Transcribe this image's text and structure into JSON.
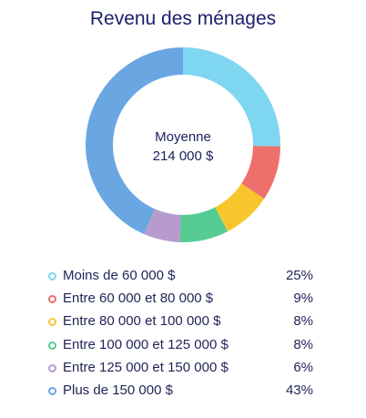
{
  "chart_data": {
    "type": "pie",
    "title": "Revenu des ménages",
    "center_title": "Moyenne",
    "center_value": "214 000 $",
    "categories": [
      "Moins de 60 000 $",
      "Entre 60 000 et 80 000 $",
      "Entre 80 000 et 100 000 $",
      "Entre 100 000 et 125 000 $",
      "Entre 125 000 et 150 000 $",
      "Plus de 150 000 $"
    ],
    "values": [
      25,
      9,
      8,
      8,
      6,
      43
    ],
    "value_labels": [
      "25%",
      "9%",
      "8%",
      "8%",
      "6%",
      "43%"
    ],
    "colors": [
      "#7fd6f0",
      "#ee6f6b",
      "#f8c52d",
      "#56cc93",
      "#b79bcc",
      "#6aa6e2"
    ],
    "legend_position": "bottom"
  }
}
